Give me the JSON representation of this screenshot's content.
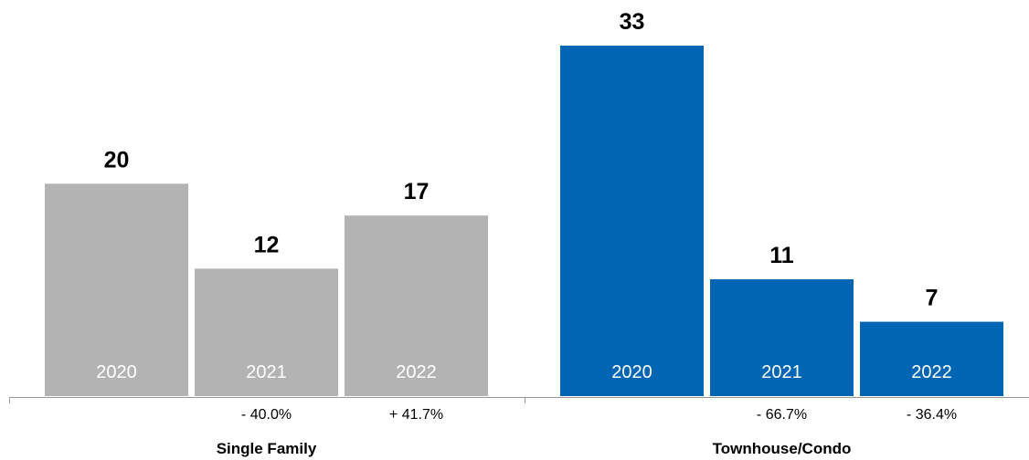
{
  "chart_data": {
    "type": "bar",
    "ylim": [
      0,
      35
    ],
    "grid": false,
    "groups": [
      {
        "name": "Single Family",
        "color": "#b3b3b3",
        "bars": [
          {
            "year": "2020",
            "value": 20,
            "change": ""
          },
          {
            "year": "2021",
            "value": 12,
            "change": "- 40.0%"
          },
          {
            "year": "2022",
            "value": 17,
            "change": "+ 41.7%"
          }
        ]
      },
      {
        "name": "Townhouse/Condo",
        "color": "#0066b3",
        "bars": [
          {
            "year": "2020",
            "value": 33,
            "change": ""
          },
          {
            "year": "2021",
            "value": 11,
            "change": "- 66.7%"
          },
          {
            "year": "2022",
            "value": 7,
            "change": "- 36.4%"
          }
        ]
      }
    ]
  }
}
